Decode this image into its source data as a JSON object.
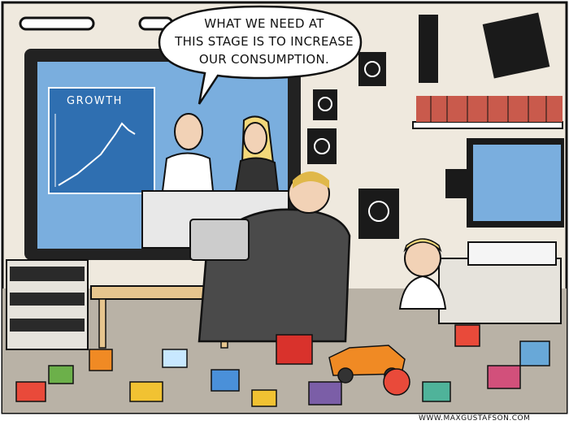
{
  "speech_bubble": {
    "line1": "WHAT WE NEED AT",
    "line2": "THIS STAGE IS TO INCREASE",
    "line3": "OUR CONSUMPTION."
  },
  "tv_chart": {
    "label": "GROWTH"
  },
  "credit": "WWW.MAXGUSTAFSON.COM",
  "colors": {
    "wall": "#efe9de",
    "tv_screen": "#7aaede",
    "floor": "#b9b2a6",
    "chair": "#4a4a4a",
    "outline": "#111111"
  }
}
